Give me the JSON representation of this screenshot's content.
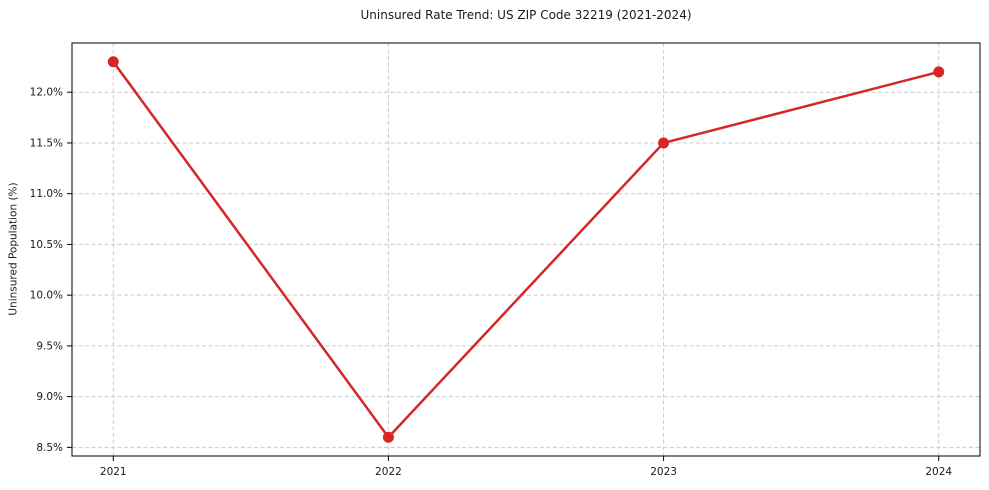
{
  "chart_data": {
    "type": "line",
    "title": "Uninsured Rate Trend: US ZIP Code 32219 (2021-2024)",
    "xlabel": "",
    "ylabel": "Uninsured Population (%)",
    "categories": [
      2021,
      2022,
      2023,
      2024
    ],
    "series": [
      {
        "name": "Uninsured Rate",
        "values": [
          12.3,
          8.6,
          11.5,
          12.2
        ]
      }
    ],
    "y_ticks": [
      8.5,
      9.0,
      9.5,
      10.0,
      10.5,
      11.0,
      11.5,
      12.0
    ],
    "y_tick_labels": [
      "8.5%",
      "9.0%",
      "9.5%",
      "10.0%",
      "10.5%",
      "11.0%",
      "11.5%",
      "12.0%"
    ],
    "x_tick_labels": [
      "2021",
      "2022",
      "2023",
      "2024"
    ],
    "xlim": [
      2020.85,
      2024.15
    ],
    "ylim": [
      8.415,
      12.485
    ],
    "grid": true,
    "grid_style": "dashed",
    "legend": "none",
    "line_color": "#d62728",
    "marker": "circle",
    "grid_color": "#cccccc",
    "spine_color": "#000000",
    "text_color": "#1a1a1a",
    "background_color": "#ffffff"
  }
}
